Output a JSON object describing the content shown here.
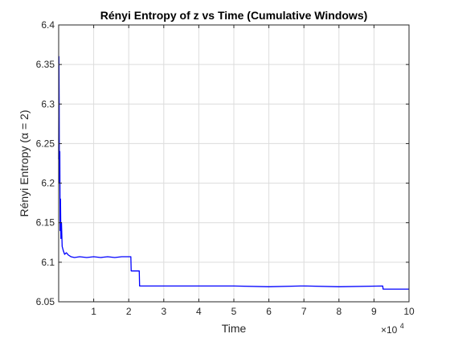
{
  "chart_data": {
    "type": "line",
    "title": "Rényi Entropy of z vs Time (Cumulative Windows)",
    "xlabel": "Time",
    "ylabel": "Rényi Entropy (α = 2)",
    "x_multiplier_label": "×10",
    "x_multiplier_exp": "4",
    "xlim": [
      0,
      100000
    ],
    "ylim": [
      6.05,
      6.4
    ],
    "xticks": [
      10000,
      20000,
      30000,
      40000,
      50000,
      60000,
      70000,
      80000,
      90000,
      100000
    ],
    "xtick_labels": [
      "1",
      "2",
      "3",
      "4",
      "5",
      "6",
      "7",
      "8",
      "9",
      "10"
    ],
    "yticks": [
      6.05,
      6.1,
      6.15,
      6.2,
      6.25,
      6.3,
      6.35,
      6.4
    ],
    "ytick_labels": [
      "6.05",
      "6.1",
      "6.15",
      "6.2",
      "6.25",
      "6.3",
      "6.35",
      "6.4"
    ],
    "grid": true,
    "series": [
      {
        "color": "#0000ff",
        "x": [
          0,
          80,
          150,
          200,
          260,
          330,
          420,
          520,
          640,
          800,
          1000,
          1300,
          1700,
          2200,
          2800,
          3500,
          4500,
          6000,
          8000,
          10000,
          12000,
          14000,
          16000,
          18000,
          20600,
          20700,
          23000,
          23100,
          30000,
          40000,
          50000,
          60000,
          69000,
          70000,
          80000,
          92500,
          92600,
          100000
        ],
        "y": [
          6.23,
          6.36,
          6.3,
          6.21,
          6.2,
          6.24,
          6.14,
          6.18,
          6.13,
          6.15,
          6.12,
          6.115,
          6.11,
          6.112,
          6.109,
          6.107,
          6.106,
          6.107,
          6.106,
          6.107,
          6.106,
          6.107,
          6.106,
          6.107,
          6.107,
          6.089,
          6.089,
          6.07,
          6.07,
          6.07,
          6.07,
          6.069,
          6.07,
          6.07,
          6.069,
          6.07,
          6.066,
          6.066
        ]
      }
    ]
  }
}
